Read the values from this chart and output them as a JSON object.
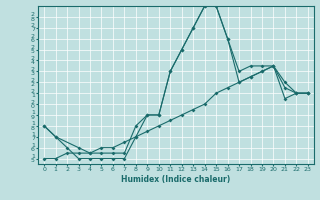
{
  "xlabel": "Humidex (Indice chaleur)",
  "background_color": "#c0e0e0",
  "line_color": "#1a6b6b",
  "grid_color": "#ffffff",
  "xlim": [
    -0.5,
    23.5
  ],
  "ylim": [
    14.5,
    29.0
  ],
  "yticks": [
    15,
    16,
    17,
    18,
    19,
    20,
    21,
    22,
    23,
    24,
    25,
    26,
    27,
    28
  ],
  "xticks": [
    0,
    1,
    2,
    3,
    4,
    5,
    6,
    7,
    8,
    9,
    10,
    11,
    12,
    13,
    14,
    15,
    16,
    17,
    18,
    19,
    20,
    21,
    22,
    23
  ],
  "line1_x": [
    0,
    1,
    2,
    3,
    4,
    5,
    6,
    7,
    8,
    9,
    10,
    11,
    12,
    13,
    14,
    15,
    16,
    17,
    18,
    19,
    20,
    21,
    22,
    23
  ],
  "line1_y": [
    18,
    17,
    16,
    15,
    15,
    15,
    15,
    15,
    17,
    19,
    19,
    23,
    25,
    27,
    29,
    29,
    26,
    23,
    23.5,
    23.5,
    23.5,
    22,
    21,
    21
  ],
  "line2_x": [
    0,
    1,
    3,
    4,
    5,
    6,
    7,
    8,
    9,
    10,
    11,
    12,
    13,
    14,
    15,
    16,
    17,
    18,
    19,
    20,
    21,
    22,
    23
  ],
  "line2_y": [
    18,
    17,
    16,
    15.5,
    15.5,
    15.5,
    15.5,
    18,
    19,
    19,
    23,
    25,
    27,
    29,
    29,
    26,
    22,
    22.5,
    23,
    23.5,
    21.5,
    21,
    21
  ],
  "line3_x": [
    0,
    1,
    2,
    3,
    4,
    5,
    6,
    7,
    8,
    9,
    10,
    11,
    12,
    13,
    14,
    15,
    16,
    17,
    18,
    19,
    20,
    21,
    22,
    23
  ],
  "line3_y": [
    15,
    15,
    15.5,
    15.5,
    15.5,
    16,
    16,
    16.5,
    17,
    17.5,
    18,
    18.5,
    19,
    19.5,
    20,
    21,
    21.5,
    22,
    22.5,
    23,
    23.5,
    20.5,
    21,
    21
  ]
}
